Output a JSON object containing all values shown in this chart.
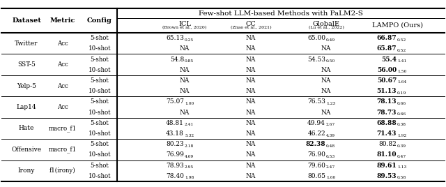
{
  "title": "Few-shot LLM-based Methods with PaLM2-S",
  "left_headers": [
    "Dataset",
    "Metric",
    "Config"
  ],
  "col_headers": [
    {
      "main": "ICL",
      "cite": "(Brown et al., 2020)"
    },
    {
      "main": "CC",
      "cite": "(Zhao et al., 2021)"
    },
    {
      "main": "GlobalE",
      "cite": "(Lu et al., 2022)"
    },
    {
      "main": "LAMPO (Ours)",
      "cite": ""
    }
  ],
  "row_groups": [
    {
      "dataset": "Twitter",
      "metric": "Acc",
      "rows": [
        {
          "config": "5-shot",
          "icl": [
            "65.13",
            "0.25",
            false
          ],
          "cc": [
            "NA",
            "",
            false
          ],
          "global": [
            "65.00",
            "0.49",
            false
          ],
          "lampo": [
            "66.87",
            "0.52",
            true
          ]
        },
        {
          "config": "10-shot",
          "icl": [
            "NA",
            "",
            false
          ],
          "cc": [
            "NA",
            "",
            false
          ],
          "global": [
            "NA",
            "",
            false
          ],
          "lampo": [
            "65.87",
            "0.52",
            true
          ]
        }
      ]
    },
    {
      "dataset": "SST-5",
      "metric": "Acc",
      "rows": [
        {
          "config": "5-shot",
          "icl": [
            "54.8",
            "0.85",
            false
          ],
          "cc": [
            "NA",
            "",
            false
          ],
          "global": [
            "54.53",
            "0.50",
            false
          ],
          "lampo": [
            "55.4",
            "1.41",
            true
          ]
        },
        {
          "config": "10-shot",
          "icl": [
            "NA",
            "",
            false
          ],
          "cc": [
            "NA",
            "",
            false
          ],
          "global": [
            "NA",
            "",
            false
          ],
          "lampo": [
            "56.00",
            "1.50",
            true
          ]
        }
      ]
    },
    {
      "dataset": "Yelp-5",
      "metric": "Acc",
      "rows": [
        {
          "config": "5-shot",
          "icl": [
            "NA",
            "",
            false
          ],
          "cc": [
            "NA",
            "",
            false
          ],
          "global": [
            "NA",
            "",
            false
          ],
          "lampo": [
            "50.67",
            "1.64",
            true
          ]
        },
        {
          "config": "10-shot",
          "icl": [
            "NA",
            "",
            false
          ],
          "cc": [
            "NA",
            "",
            false
          ],
          "global": [
            "NA",
            "",
            false
          ],
          "lampo": [
            "51.13",
            "0.19",
            true
          ]
        }
      ]
    },
    {
      "dataset": "Lap14",
      "metric": "Acc",
      "rows": [
        {
          "config": "5-shot",
          "icl": [
            "75.07",
            "1.00",
            false
          ],
          "cc": [
            "NA",
            "",
            false
          ],
          "global": [
            "76.53",
            "1.23",
            false
          ],
          "lampo": [
            "78.13",
            "0.66",
            true
          ]
        },
        {
          "config": "10-shot",
          "icl": [
            "NA",
            "",
            false
          ],
          "cc": [
            "NA",
            "",
            false
          ],
          "global": [
            "NA",
            "",
            false
          ],
          "lampo": [
            "78.73",
            "0.66",
            true
          ]
        }
      ]
    },
    {
      "dataset": "Hate",
      "metric": "macro_f1",
      "rows": [
        {
          "config": "5-shot",
          "icl": [
            "48.81",
            "2.41",
            false
          ],
          "cc": [
            "NA",
            "",
            false
          ],
          "global": [
            "49.94",
            "2.67",
            false
          ],
          "lampo": [
            "68.88",
            "0.38",
            true
          ]
        },
        {
          "config": "10-shot",
          "icl": [
            "43.18",
            "5.32",
            false
          ],
          "cc": [
            "NA",
            "",
            false
          ],
          "global": [
            "46.22",
            "4.39",
            false
          ],
          "lampo": [
            "71.43",
            "1.92",
            true
          ]
        }
      ]
    },
    {
      "dataset": "Offensive",
      "metric": "macro_f1",
      "rows": [
        {
          "config": "5-shot",
          "icl": [
            "80.23",
            "2.18",
            false
          ],
          "cc": [
            "NA",
            "",
            false
          ],
          "global": [
            "82.38",
            "0.48",
            true
          ],
          "lampo": [
            "80.82",
            "0.39",
            false
          ]
        },
        {
          "config": "10-shot",
          "icl": [
            "76.99",
            "4.69",
            false
          ],
          "cc": [
            "NA",
            "",
            false
          ],
          "global": [
            "76.90",
            "6.53",
            false
          ],
          "lampo": [
            "81.10",
            "0.47",
            true
          ]
        }
      ]
    },
    {
      "dataset": "Irony",
      "metric": "f1(irony)",
      "rows": [
        {
          "config": "5-shot",
          "icl": [
            "78.93",
            "2.95",
            false
          ],
          "cc": [
            "NA",
            "",
            false
          ],
          "global": [
            "79.60",
            "2.47",
            false
          ],
          "lampo": [
            "89.61",
            "1.13",
            true
          ]
        },
        {
          "config": "10-shot",
          "icl": [
            "78.40",
            "1.98",
            false
          ],
          "cc": [
            "NA",
            "",
            false
          ],
          "global": [
            "80.65",
            "1.60",
            false
          ],
          "lampo": [
            "89.53",
            "0.58",
            true
          ]
        }
      ]
    }
  ]
}
